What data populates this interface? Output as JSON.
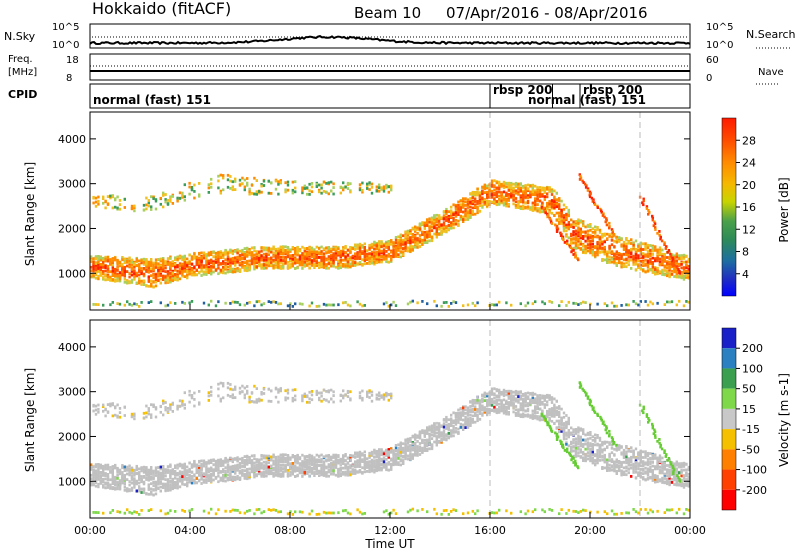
{
  "header": {
    "station": "Hokkaido (fitACF)",
    "beam": "Beam 10",
    "date_range": "07/Apr/2016 - 08/Apr/2016"
  },
  "noise_panel": {
    "left_label": "N.Sky",
    "right_label": "N.Search",
    "left_ticks": [
      "10^5",
      "10^0"
    ],
    "right_ticks": [
      "10^5",
      "10^0"
    ]
  },
  "freq_panel": {
    "label_line1": "Freq.",
    "label_line2": "[MHz]",
    "left_ticks": [
      "18",
      "8"
    ],
    "right_ticks": [
      "60",
      "0"
    ],
    "right_label": "Nave"
  },
  "cpid_panel": {
    "label": "CPID",
    "modes": [
      {
        "name": "normal (fast) 151",
        "start_hour": 0
      },
      {
        "name": "rbsp 200",
        "start_hour": 16
      },
      {
        "name": "normal (fast) 151",
        "start_hour": 18.5
      },
      {
        "name": "rbsp 200",
        "start_hour": 19.6
      }
    ]
  },
  "chart_data": [
    {
      "type": "heatmap",
      "title": "Power",
      "ylabel": "Slant Range [km]",
      "xlabel": "Time UT",
      "x_ticks": [
        "00:00",
        "04:00",
        "08:00",
        "12:00",
        "16:00",
        "20:00",
        "00:00"
      ],
      "x_range_hours": [
        0,
        24
      ],
      "y_ticks": [
        1000,
        2000,
        3000,
        4000
      ],
      "ylim": [
        180,
        4600
      ],
      "colorbar_label": "Power [dB]",
      "colorbar_ticks": [
        "28",
        "24",
        "20",
        "16",
        "12",
        "8",
        "4"
      ],
      "colorbar_colors": [
        "#ff1a00",
        "#ff4a00",
        "#ff8c00",
        "#f5b800",
        "#c8d400",
        "#4aa04a",
        "#2e8b57",
        "#1e6fa0",
        "#2030c0",
        "#0000ff"
      ],
      "band_colors": [
        "#ff2000",
        "#ff5500",
        "#ff8c00",
        "#f0c020",
        "#a8d060",
        "#3c9c5a",
        "#2060a0"
      ],
      "main_band": [
        {
          "hour": 0.0,
          "center": 1150,
          "width": 500
        },
        {
          "hour": 2.5,
          "center": 1000,
          "width": 620
        },
        {
          "hour": 4.0,
          "center": 1180,
          "width": 520
        },
        {
          "hour": 7.0,
          "center": 1350,
          "width": 500
        },
        {
          "hour": 10.0,
          "center": 1350,
          "width": 480
        },
        {
          "hour": 12.0,
          "center": 1500,
          "width": 500
        },
        {
          "hour": 14.0,
          "center": 2100,
          "width": 540
        },
        {
          "hour": 16.0,
          "center": 2800,
          "width": 560
        },
        {
          "hour": 17.5,
          "center": 2700,
          "width": 560
        },
        {
          "hour": 18.5,
          "center": 2600,
          "width": 620
        },
        {
          "hour": 19.3,
          "center": 1900,
          "width": 700
        },
        {
          "hour": 21.0,
          "center": 1500,
          "width": 700
        },
        {
          "hour": 24.0,
          "center": 1100,
          "width": 550
        }
      ],
      "upper_band": [
        {
          "hour": 0.0,
          "center": 2650,
          "width": 300
        },
        {
          "hour": 2.0,
          "center": 2500,
          "width": 300
        },
        {
          "hour": 5.0,
          "center": 3000,
          "width": 450
        },
        {
          "hour": 8.0,
          "center": 2900,
          "width": 300
        },
        {
          "hour": 11.0,
          "center": 2900,
          "width": 250
        },
        {
          "hour": 12.0,
          "center": 2900,
          "width": 200
        }
      ],
      "ground_scatter_band": {
        "center": 320,
        "width": 120
      }
    },
    {
      "type": "heatmap",
      "title": "Velocity",
      "ylabel": "Slant Range [km]",
      "xlabel": "Time UT",
      "x_ticks": [
        "00:00",
        "04:00",
        "08:00",
        "12:00",
        "16:00",
        "20:00",
        "00:00"
      ],
      "x_range_hours": [
        0,
        24
      ],
      "y_ticks": [
        1000,
        2000,
        3000,
        4000
      ],
      "ylim": [
        180,
        4600
      ],
      "colorbar_label": "Velocity [m s-1]",
      "colorbar_ticks": [
        "200",
        "100",
        "50",
        "15",
        "-15",
        "-50",
        "-100",
        "-200"
      ],
      "colorbar_colors": [
        "#1a20c8",
        "#2a80c0",
        "#3aa050",
        "#7ed84a",
        "#c8c8c8",
        "#f5c000",
        "#ff8000",
        "#ff4000",
        "#ff0000"
      ],
      "ground_color": "#c0c0c0",
      "highlight_color": "#66cc33",
      "green_streaks": [
        {
          "start_hour": 18.0,
          "start_range": 2500,
          "end_hour": 19.5,
          "end_range": 1300
        },
        {
          "start_hour": 19.5,
          "start_range": 3200,
          "end_hour": 21.0,
          "end_range": 1800
        },
        {
          "start_hour": 22.0,
          "start_range": 2700,
          "end_hour": 23.5,
          "end_range": 1000
        }
      ]
    }
  ]
}
